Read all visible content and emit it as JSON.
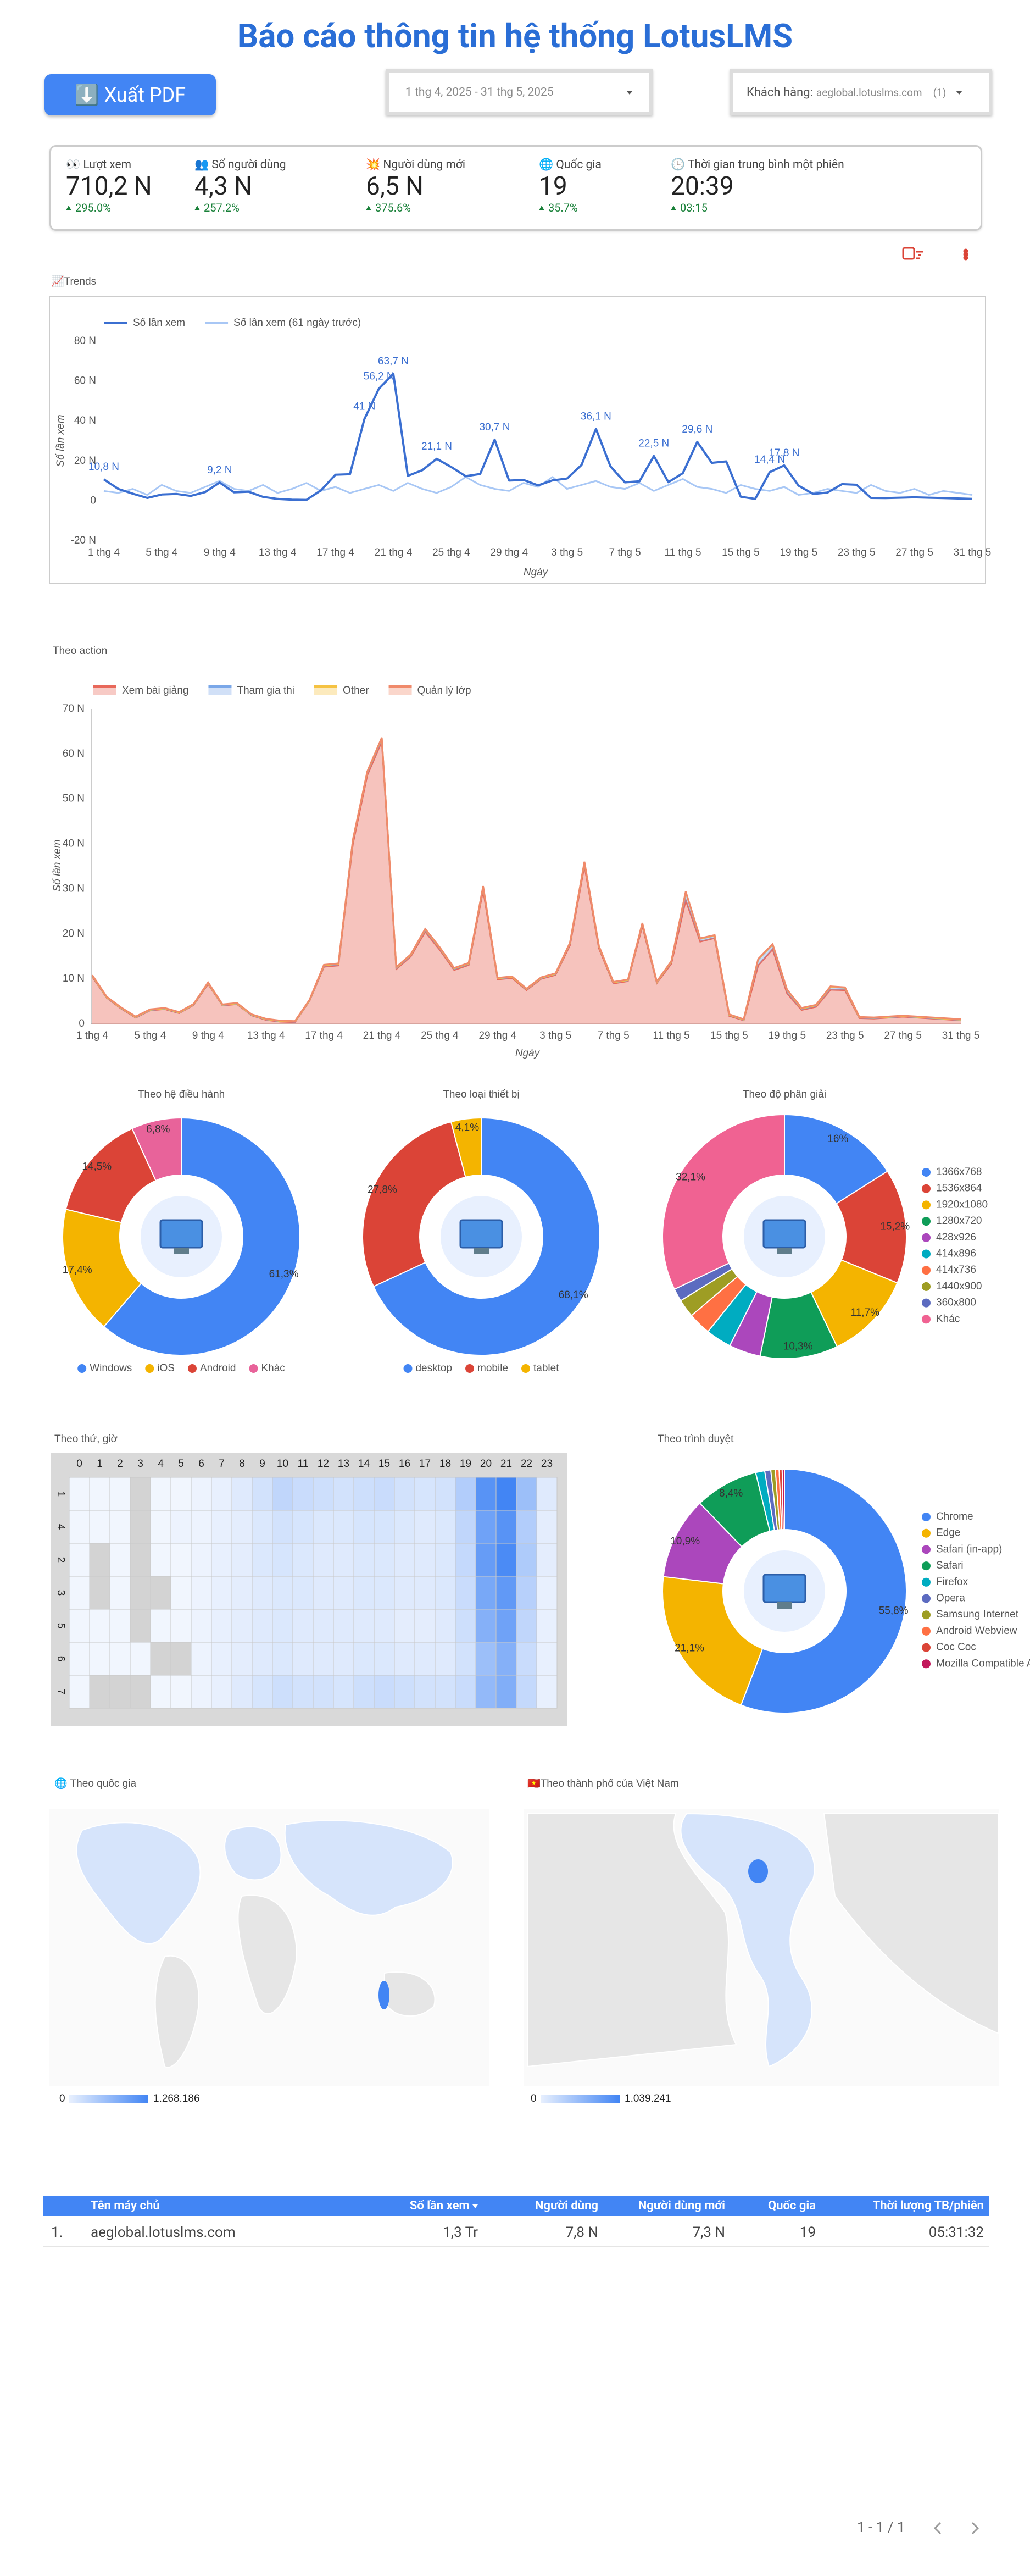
{
  "header": {
    "title": "Báo cáo thông tin hệ thống LotusLMS",
    "export_button": "⬇️ Xuất PDF",
    "date_range": "1 thg 4, 2025 - 31 thg 5, 2025",
    "customer_label": "Khách hàng:",
    "customer_value": "aeglobal.lotuslms.com",
    "customer_count": "(1)"
  },
  "kpis": [
    {
      "label": "👀 Lượt xem",
      "value": "710,2 N",
      "delta": "295.0%"
    },
    {
      "label": "👥 Số người dùng",
      "value": "4,3 N",
      "delta": "257.2%"
    },
    {
      "label": "💥 Người dùng mới",
      "value": "6,5 N",
      "delta": "375.6%"
    },
    {
      "label": "🌐 Quốc gia",
      "value": "19",
      "delta": "35.7%"
    },
    {
      "label": "🕒 Thời gian trung bình một phiên",
      "value": "20:39",
      "delta": "03:15"
    }
  ],
  "chart_data": [
    {
      "type": "line",
      "title": "📈Trends",
      "x_label": "Ngày",
      "y_label": "Số lần xem",
      "legend": "top",
      "grid": false,
      "categories": [
        "1 thg 4",
        null,
        null,
        null,
        "5 thg 4",
        null,
        null,
        null,
        "9 thg 4",
        null,
        null,
        null,
        "13 thg 4",
        null,
        null,
        null,
        "17 thg 4",
        null,
        null,
        null,
        "21 thg 4",
        null,
        null,
        null,
        "25 thg 4",
        null,
        null,
        null,
        "29 thg 4",
        null,
        null,
        null,
        "3 thg 5",
        null,
        null,
        null,
        "7 thg 5",
        null,
        null,
        null,
        "11 thg 5",
        null,
        null,
        null,
        "15 thg 5",
        null,
        null,
        null,
        "19 thg 5",
        null,
        null,
        null,
        "23 thg 5",
        null,
        null,
        null,
        "27 thg 5",
        null,
        null,
        null,
        "31 thg 5"
      ],
      "ylim": [
        -20,
        80
      ],
      "yticks": [
        {
          "value": -20,
          "label": "-20 N"
        },
        0,
        {
          "value": 20,
          "label": "20 N"
        },
        {
          "value": 40,
          "label": "40 N"
        },
        {
          "value": 60,
          "label": "60 N"
        },
        {
          "value": 80,
          "label": "80 N"
        }
      ],
      "series": [
        {
          "name": "Số lần xem",
          "color": "#3b6fd1",
          "values": [
            10.8,
            6,
            3.6,
            1.5,
            3.2,
            3.5,
            2.5,
            4.4,
            9.2,
            4.3,
            4.6,
            2,
            1,
            0.6,
            0.5,
            5.3,
            13.1,
            13.4,
            41,
            56.2,
            63.7,
            12.6,
            15.4,
            21.1,
            17,
            12.4,
            13.5,
            30.7,
            10.2,
            10.5,
            7.8,
            10.3,
            11.2,
            18,
            36.1,
            17.3,
            9.3,
            9.8,
            22.5,
            9.4,
            13.9,
            29.6,
            19.1,
            19.8,
            2.1,
            1,
            14.4,
            17.8,
            7.6,
            3.5,
            4.2,
            8.4,
            8.1,
            1.5,
            1.4,
            1.6,
            1.8,
            1.6,
            1.4,
            1.2,
            1
          ],
          "value_labels": [
            "10,8 N",
            null,
            null,
            null,
            null,
            null,
            null,
            null,
            "9,2 N",
            null,
            null,
            null,
            null,
            null,
            null,
            null,
            null,
            null,
            "41 N",
            "56,2 N",
            "63,7 N",
            null,
            null,
            "21,1 N",
            null,
            null,
            null,
            "30,7 N",
            null,
            null,
            null,
            null,
            null,
            null,
            "36,1 N",
            null,
            null,
            null,
            "22,5 N",
            null,
            null,
            "29,6 N",
            null,
            null,
            null,
            null,
            "14,4 N",
            "17,8 N",
            null,
            null,
            null,
            null,
            null,
            null,
            null,
            null,
            null,
            null,
            null,
            null,
            null
          ]
        },
        {
          "name": "Số lần xem (61 ngày trước)",
          "color": "#a8c7f5",
          "values": [
            5,
            4,
            6,
            3,
            8,
            5,
            4,
            7,
            10,
            6,
            5,
            8,
            4,
            6,
            9,
            5,
            7,
            4,
            6,
            8,
            5,
            9,
            6,
            4,
            7,
            12,
            8,
            6,
            5,
            9,
            7,
            12,
            6,
            8,
            10,
            7,
            6,
            9,
            5,
            8,
            11,
            7,
            6,
            4,
            8,
            6,
            5,
            7,
            3,
            4,
            6,
            5,
            4,
            8,
            5,
            4,
            6,
            3,
            5,
            4,
            3
          ]
        }
      ]
    },
    {
      "type": "area",
      "title": "Theo action",
      "x_label": "Ngày",
      "y_label": "Số lần xem",
      "legend": "top",
      "grid": false,
      "stacked": true,
      "categories": [
        "1 thg 4",
        null,
        null,
        null,
        "5 thg 4",
        null,
        null,
        null,
        "9 thg 4",
        null,
        null,
        null,
        "13 thg 4",
        null,
        null,
        null,
        "17 thg 4",
        null,
        null,
        null,
        "21 thg 4",
        null,
        null,
        null,
        "25 thg 4",
        null,
        null,
        null,
        "29 thg 4",
        null,
        null,
        null,
        "3 thg 5",
        null,
        null,
        null,
        "7 thg 5",
        null,
        null,
        null,
        "11 thg 5",
        null,
        null,
        null,
        "15 thg 5",
        null,
        null,
        null,
        "19 thg 5",
        null,
        null,
        null,
        "23 thg 5",
        null,
        null,
        null,
        "27 thg 5",
        null,
        null,
        null,
        "31 thg 5"
      ],
      "ylim": [
        0,
        70
      ],
      "yticks": [
        0,
        {
          "value": 10,
          "label": "10 N"
        },
        {
          "value": 20,
          "label": "20 N"
        },
        {
          "value": 30,
          "label": "30 N"
        },
        {
          "value": 40,
          "label": "40 N"
        },
        {
          "value": 50,
          "label": "50 N"
        },
        {
          "value": 60,
          "label": "60 N"
        },
        {
          "value": 70,
          "label": "70 N"
        }
      ],
      "series": [
        {
          "name": "Xem bài giảng",
          "color": "#e8685a",
          "values": [
            10.5,
            5.8,
            3.4,
            1.4,
            3,
            3.3,
            2.4,
            4.2,
            8.9,
            4.1,
            4.4,
            1.9,
            0.9,
            0.5,
            0.4,
            5.1,
            12.7,
            13,
            40,
            55.3,
            62.8,
            12.2,
            15,
            20.5,
            16.5,
            12,
            13.1,
            29.8,
            9.9,
            10.2,
            7.5,
            10,
            10.9,
            17.5,
            35.2,
            16.8,
            9,
            9.5,
            21.8,
            9.1,
            13.4,
            27.5,
            18.3,
            19.1,
            1.8,
            0.8,
            13,
            16.6,
            6.8,
            3.1,
            3.8,
            7.6,
            7.5,
            1.3,
            1.2,
            1.4,
            1.6,
            1.4,
            1.2,
            1,
            0.8
          ]
        },
        {
          "name": "Tham gia thi",
          "color": "#7aa7e8",
          "values": [
            0.2,
            0.1,
            0.1,
            0.1,
            0.1,
            0.1,
            0.1,
            0.1,
            0.2,
            0.1,
            0.1,
            0.1,
            0.1,
            0.1,
            0.1,
            0.1,
            0.3,
            0.3,
            0.8,
            0.7,
            0.7,
            0.3,
            0.3,
            0.5,
            0.4,
            0.3,
            0.3,
            0.7,
            0.2,
            0.2,
            0.2,
            0.2,
            0.2,
            0.4,
            0.7,
            0.4,
            0.2,
            0.2,
            0.5,
            0.2,
            0.4,
            1.8,
            0.6,
            0.5,
            0.2,
            0.1,
            1.3,
            1.0,
            0.7,
            0.3,
            0.3,
            0.6,
            0.5,
            0.1,
            0.1,
            0.1,
            0.1,
            0.1,
            0.1,
            0.1,
            0.1
          ]
        },
        {
          "name": "Other",
          "color": "#f5c242",
          "values": [
            0.05,
            0.05,
            0.05,
            0.05,
            0.05,
            0.05,
            0.05,
            0.05,
            0.05,
            0.05,
            0.05,
            0.05,
            0.05,
            0.05,
            0.05,
            0.05,
            0.05,
            0.05,
            0.05,
            0.05,
            0.05,
            0.05,
            0.05,
            0.05,
            0.05,
            0.05,
            0.05,
            0.05,
            0.05,
            0.05,
            0.05,
            0.05,
            0.05,
            0.05,
            0.05,
            0.05,
            0.05,
            0.05,
            0.05,
            0.05,
            0.05,
            0.05,
            0.05,
            0.05,
            0.05,
            0.05,
            0.05,
            0.05,
            0.05,
            0.05,
            0.05,
            0.05,
            0.05,
            0.05,
            0.05,
            0.05,
            0.05,
            0.05,
            0.05,
            0.05,
            0.05
          ]
        },
        {
          "name": "Quản lý lớp",
          "color": "#f08a6b",
          "values": [
            0.1,
            0.1,
            0.1,
            0.1,
            0.1,
            0.1,
            0.1,
            0.1,
            0.1,
            0.1,
            0.1,
            0.1,
            0.1,
            0.1,
            0.1,
            0.1,
            0.1,
            0.1,
            0.1,
            0.1,
            0.1,
            0.1,
            0.1,
            0.1,
            0.1,
            0.1,
            0.1,
            0.1,
            0.1,
            0.1,
            0.1,
            0.1,
            0.1,
            0.1,
            0.1,
            0.1,
            0.1,
            0.1,
            0.1,
            0.1,
            0.1,
            0.1,
            0.1,
            0.1,
            0.1,
            0.1,
            0.1,
            0.1,
            0.1,
            0.1,
            0.1,
            0.1,
            0.1,
            0.1,
            0.1,
            0.1,
            0.1,
            0.1,
            0.1,
            0.1,
            0.1
          ]
        }
      ]
    },
    {
      "type": "pie",
      "title": "Theo hệ điều hành",
      "donut": true,
      "legend": "bottom",
      "categories": [
        "Windows",
        "iOS",
        "Android",
        "Khác"
      ],
      "values": [
        61.3,
        17.4,
        14.5,
        6.8
      ],
      "value_labels": [
        "61,3%",
        "17,4%",
        "14,5%",
        "6,8%"
      ],
      "colors": [
        "#4285f4",
        "#f4b400",
        "#db4437",
        "#e8639a"
      ]
    },
    {
      "type": "pie",
      "title": "Theo loại thiết bị",
      "donut": true,
      "legend": "bottom",
      "categories": [
        "desktop",
        "mobile",
        "tablet"
      ],
      "values": [
        68.1,
        27.8,
        4.1
      ],
      "value_labels": [
        "68,1%",
        "27,8%",
        "4,1%"
      ],
      "colors": [
        "#4285f4",
        "#db4437",
        "#f4b400"
      ]
    },
    {
      "type": "pie",
      "title": "Theo độ phân giải",
      "donut": true,
      "legend": "right",
      "categories": [
        "1366x768",
        "1536x864",
        "1920x1080",
        "1280x720",
        "428x926",
        "414x896",
        "414x736",
        "1440x900",
        "360x800",
        "Khác"
      ],
      "values": [
        16,
        15.2,
        11.7,
        10.3,
        4.2,
        3.4,
        3.0,
        2.4,
        1.7,
        32.1
      ],
      "value_labels": [
        "16%",
        "15,2%",
        "11,7%",
        "10,3%",
        null,
        null,
        null,
        null,
        null,
        "32,1%"
      ],
      "colors": [
        "#4285f4",
        "#db4437",
        "#f4b400",
        "#0f9d58",
        "#ab47bc",
        "#00acc1",
        "#ff7043",
        "#9e9d24",
        "#5c6bc0",
        "#f06292"
      ]
    },
    {
      "type": "heatmap",
      "title": "Theo thứ, giờ",
      "color": "#4285f4",
      "null_color": "#d3d3d3",
      "x": [
        0,
        1,
        2,
        3,
        4,
        5,
        6,
        7,
        8,
        9,
        10,
        11,
        12,
        13,
        14,
        15,
        16,
        17,
        18,
        19,
        20,
        21,
        22,
        23
      ],
      "y": [
        1,
        4,
        2,
        3,
        5,
        6,
        7
      ],
      "values": [
        [
          1,
          1,
          1,
          null,
          1,
          1,
          2,
          3,
          5,
          8,
          12,
          10,
          9,
          8,
          9,
          10,
          8,
          7,
          8,
          15,
          35,
          40,
          20,
          5
        ],
        [
          1,
          1,
          1,
          null,
          1,
          2,
          2,
          3,
          4,
          6,
          8,
          7,
          6,
          6,
          7,
          7,
          6,
          5,
          6,
          12,
          30,
          35,
          15,
          4
        ],
        [
          1,
          null,
          1,
          null,
          1,
          1,
          2,
          3,
          4,
          6,
          7,
          6,
          5,
          5,
          6,
          6,
          5,
          5,
          6,
          11,
          32,
          38,
          16,
          4
        ],
        [
          1,
          null,
          1,
          null,
          null,
          1,
          2,
          3,
          4,
          5,
          6,
          6,
          5,
          5,
          6,
          6,
          5,
          5,
          6,
          10,
          28,
          33,
          14,
          3
        ],
        [
          1,
          1,
          1,
          null,
          1,
          1,
          2,
          3,
          4,
          5,
          6,
          5,
          5,
          5,
          5,
          5,
          4,
          4,
          5,
          9,
          25,
          30,
          12,
          3
        ],
        [
          1,
          1,
          1,
          1,
          null,
          null,
          2,
          3,
          4,
          5,
          6,
          5,
          5,
          5,
          6,
          6,
          5,
          5,
          5,
          8,
          20,
          25,
          10,
          3
        ],
        [
          1,
          null,
          null,
          null,
          1,
          1,
          2,
          3,
          5,
          7,
          9,
          8,
          8,
          7,
          9,
          10,
          9,
          8,
          8,
          10,
          22,
          26,
          11,
          3
        ]
      ]
    },
    {
      "type": "pie",
      "title": "Theo trình duyệt",
      "donut": true,
      "legend": "right",
      "categories": [
        "Chrome",
        "Edge",
        "Safari (in-app)",
        "Safari",
        "Firefox",
        "Opera",
        "Samsung Internet",
        "Android Webview",
        "Coc Coc",
        "Mozilla Compatible Agent"
      ],
      "values": [
        55.8,
        21.1,
        10.9,
        8.4,
        1.2,
        0.8,
        0.6,
        0.5,
        0.4,
        0.3
      ],
      "value_labels": [
        "55,8%",
        "21,1%",
        "10,9%",
        "8,4%",
        null,
        null,
        null,
        null,
        null,
        null
      ],
      "colors": [
        "#4285f4",
        "#f4b400",
        "#ab47bc",
        "#0f9d58",
        "#00acc1",
        "#5c6bc0",
        "#9e9d24",
        "#ff7043",
        "#db4437",
        "#c2185b"
      ]
    },
    {
      "type": "map",
      "title": "🌐 Theo quốc gia",
      "region": "world",
      "color": "#4285f4",
      "scale": [
        0,
        {
          "value": 1268186,
          "label": "1.268.186"
        }
      ]
    },
    {
      "type": "map",
      "title": "🇻🇳Theo thành phố của Việt Nam",
      "region": "vietnam",
      "color": "#4285f4",
      "scale": [
        0,
        {
          "value": 1039241,
          "label": "1.039.241"
        }
      ]
    }
  ],
  "table": {
    "columns": [
      "Tên máy chủ",
      "Số lần xem",
      "Người dùng",
      "Người dùng mới",
      "Quốc gia",
      "Thời lượng TB/phiên"
    ],
    "rows": [
      {
        "index": "1.",
        "cells": [
          "aeglobal.lotuslms.com",
          "1,3 Tr",
          "7,8 N",
          "7,3 N",
          "19",
          "05:31:32"
        ]
      }
    ]
  },
  "pager": "1 - 1 / 1"
}
